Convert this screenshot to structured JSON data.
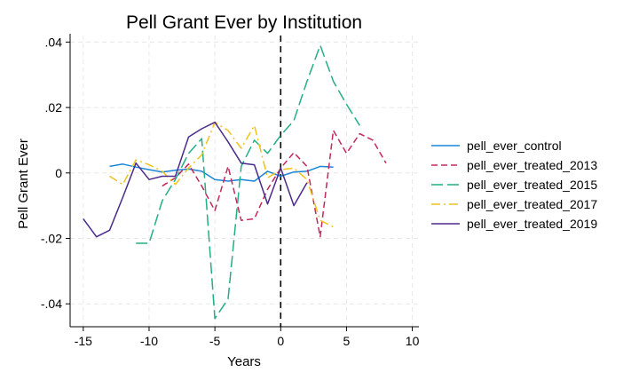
{
  "chart_data": {
    "type": "line",
    "title": "Pell Grant Ever by Institution",
    "xlabel": "Years",
    "ylabel": "Pell Grant Ever",
    "xlim": [
      -16,
      10.5
    ],
    "ylim": [
      -0.047,
      0.042
    ],
    "x_ticks": [
      -15,
      -10,
      -5,
      0,
      5,
      10
    ],
    "x_tick_labels": [
      "-15",
      "-10",
      "-5",
      "0",
      "5",
      "10"
    ],
    "y_ticks": [
      -0.04,
      -0.02,
      0,
      0.02,
      0.04
    ],
    "y_tick_labels": [
      "-.04",
      "-.02",
      "0",
      ".02",
      ".04"
    ],
    "grid": true,
    "legend_position": "right",
    "reference_line": {
      "axis": "x",
      "value": 0,
      "style": "dashed",
      "color": "#000000"
    },
    "series": [
      {
        "name": "pell_ever_control",
        "color": "#1a85d6",
        "dash": "solid",
        "x": [
          -13,
          -12,
          -11,
          -10,
          -9,
          -8,
          -7,
          -6,
          -5,
          -4,
          -3,
          -2,
          -1,
          0,
          1,
          2,
          3,
          4
        ],
        "y": [
          0.002,
          0.0027,
          0.0018,
          0.001,
          0.0003,
          0.0008,
          0.0012,
          0.0005,
          -0.002,
          -0.0025,
          -0.002,
          -0.0025,
          0.0005,
          -0.001,
          0.0003,
          0.0005,
          0.002,
          0.0018
        ]
      },
      {
        "name": "pell_ever_treated_2013",
        "color": "#c4285a",
        "dash": "dashed",
        "x": [
          -9,
          -8,
          -7,
          -6,
          -5,
          -4,
          -3,
          -2,
          -1,
          0,
          1,
          2,
          3,
          4,
          5,
          6,
          7,
          8
        ],
        "y": [
          -0.004,
          -0.0015,
          0.0027,
          -0.004,
          -0.0115,
          0.002,
          -0.0145,
          -0.014,
          -0.005,
          0.0015,
          0.0062,
          0.002,
          -0.0195,
          0.013,
          0.006,
          0.012,
          0.01,
          0.003
        ]
      },
      {
        "name": "pell_ever_treated_2015",
        "color": "#22ae86",
        "dash": "longdash",
        "x": [
          -11,
          -10,
          -9,
          -8,
          -7,
          -6,
          -5,
          -4,
          -3,
          -2,
          -1,
          0,
          1,
          2,
          3,
          4,
          5,
          6
        ],
        "y": [
          -0.0215,
          -0.0215,
          -0.0085,
          -0.002,
          0.006,
          0.0105,
          -0.0445,
          -0.0385,
          0.002,
          0.01,
          0.006,
          0.0115,
          0.016,
          0.028,
          0.039,
          0.028,
          0.021,
          0.0145
        ]
      },
      {
        "name": "pell_ever_treated_2017",
        "color": "#f0c21a",
        "dash": "dashdot",
        "x": [
          -13,
          -12,
          -11,
          -10,
          -9,
          -8,
          -7,
          -6,
          -5,
          -4,
          -3,
          -2,
          -1,
          0,
          1,
          2,
          3,
          4
        ],
        "y": [
          -0.001,
          -0.0035,
          0.004,
          0.0025,
          0.0005,
          -0.0035,
          0.0015,
          0.0055,
          0.0155,
          0.013,
          0.0075,
          0.0145,
          -0.0015,
          0.001,
          0.0015,
          -0.002,
          -0.0145,
          -0.0165
        ]
      },
      {
        "name": "pell_ever_treated_2019",
        "color": "#4b2a8c",
        "dash": "solid",
        "x": [
          -15,
          -14,
          -13,
          -12,
          -11,
          -10,
          -9,
          -8,
          -7,
          -6,
          -5,
          -4,
          -3,
          -2,
          -1,
          0,
          1,
          2
        ],
        "y": [
          -0.014,
          -0.0195,
          -0.0175,
          -0.0075,
          0.003,
          -0.002,
          -0.001,
          -0.001,
          0.011,
          0.0135,
          0.0155,
          0.0095,
          0.003,
          0.0025,
          -0.0095,
          0.0015,
          -0.01,
          -0.003
        ]
      }
    ]
  }
}
